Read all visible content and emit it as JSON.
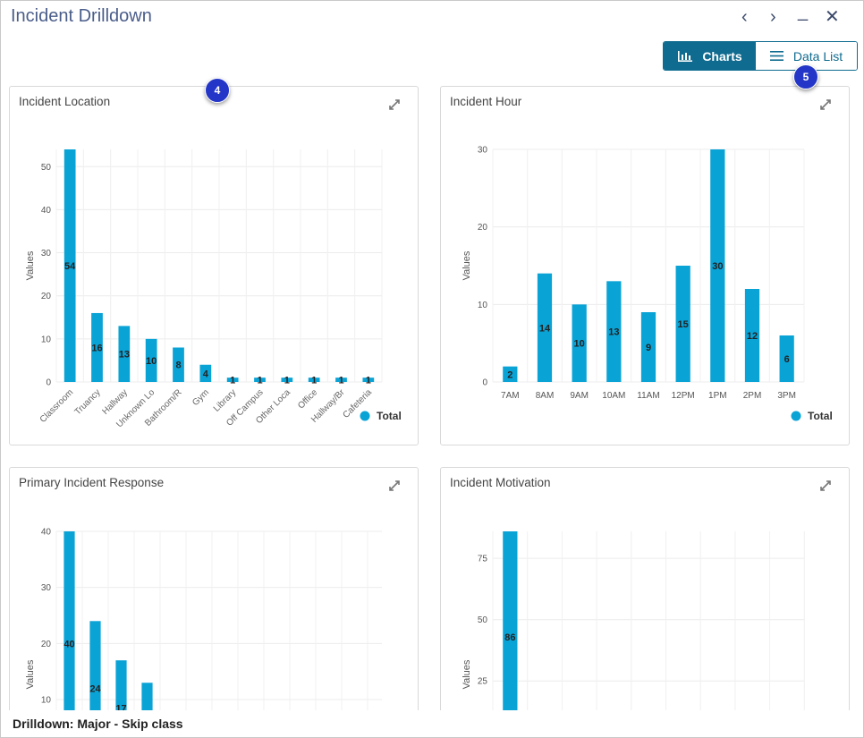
{
  "window": {
    "title": "Incident Drilldown",
    "controls": [
      "‹",
      "›",
      "_",
      "✕"
    ]
  },
  "toggle": {
    "charts_label": "Charts",
    "datalist_label": "Data List"
  },
  "badges": {
    "b4": "4",
    "b5": "5"
  },
  "colors": {
    "bar": "#0aa3d6",
    "accent": "#0f6b8f",
    "badge": "#2436c8"
  },
  "footer": {
    "text": "Drilldown: Major - Skip class"
  },
  "charts": [
    {
      "title": "Incident Location",
      "type": "bar",
      "ylabel": "Values",
      "yticks": [
        0,
        10,
        20,
        30,
        40,
        50
      ],
      "categories": [
        "Classroom",
        "Truancy",
        "Hallway",
        "Unknown Lo",
        "Bathroom/R",
        "Gym",
        "Library",
        "Off Campus",
        "Other Loca",
        "Office",
        "Hallway/Br",
        "Cafeteria"
      ],
      "values": [
        54,
        16,
        13,
        10,
        8,
        4,
        1,
        1,
        1,
        1,
        1,
        1
      ],
      "legend": "Total"
    },
    {
      "title": "Incident Hour",
      "type": "bar",
      "ylabel": "Values",
      "yticks": [
        0,
        10,
        20,
        30
      ],
      "categories": [
        "7AM",
        "8AM",
        "9AM",
        "10AM",
        "11AM",
        "12PM",
        "1PM",
        "2PM",
        "3PM"
      ],
      "values": [
        2,
        14,
        10,
        13,
        9,
        15,
        30,
        12,
        6
      ],
      "legend": "Total"
    },
    {
      "title": "Primary Incident Response",
      "type": "bar",
      "ylabel": "Values",
      "yticks": [
        10,
        20,
        30,
        40
      ],
      "values": [
        40,
        24,
        17,
        13
      ]
    },
    {
      "title": "Incident Motivation",
      "type": "bar",
      "ylabel": "Values",
      "yticks": [
        25,
        50,
        75
      ],
      "values": [
        86
      ]
    }
  ],
  "chart_data": [
    {
      "type": "bar",
      "title": "Incident Location",
      "ylabel": "Values",
      "categories": [
        "Classroom",
        "Truancy",
        "Hallway",
        "Unknown Lo",
        "Bathroom/R",
        "Gym",
        "Library",
        "Off Campus",
        "Other Loca",
        "Office",
        "Hallway/Br",
        "Cafeteria"
      ],
      "series": [
        {
          "name": "Total",
          "values": [
            54,
            16,
            13,
            10,
            8,
            4,
            1,
            1,
            1,
            1,
            1,
            1
          ]
        }
      ],
      "ylim": [
        0,
        54
      ]
    },
    {
      "type": "bar",
      "title": "Incident Hour",
      "ylabel": "Values",
      "categories": [
        "7AM",
        "8AM",
        "9AM",
        "10AM",
        "11AM",
        "12PM",
        "1PM",
        "2PM",
        "3PM"
      ],
      "series": [
        {
          "name": "Total",
          "values": [
            2,
            14,
            10,
            13,
            9,
            15,
            30,
            12,
            6
          ]
        }
      ],
      "ylim": [
        0,
        30
      ]
    },
    {
      "type": "bar",
      "title": "Primary Incident Response",
      "ylabel": "Values",
      "series": [
        {
          "values": [
            40,
            24,
            17,
            13
          ]
        }
      ]
    },
    {
      "type": "bar",
      "title": "Incident Motivation",
      "ylabel": "Values",
      "series": [
        {
          "values": [
            86
          ]
        }
      ]
    }
  ]
}
